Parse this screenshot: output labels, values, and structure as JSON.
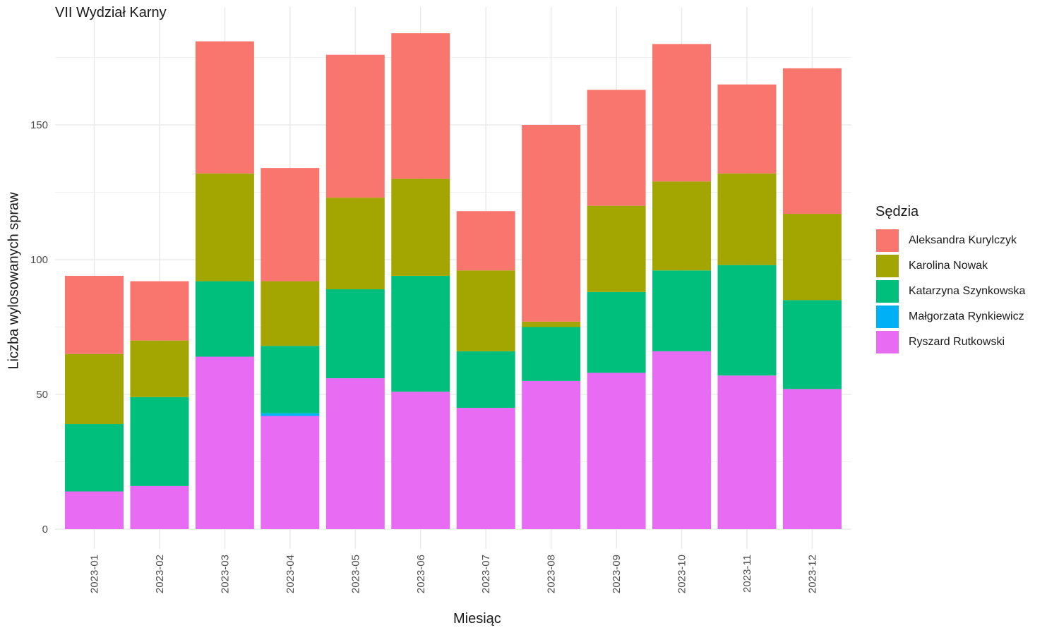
{
  "chart_data": {
    "type": "bar",
    "stacked": true,
    "title": "VII Wydział Karny",
    "xlabel": "Miesiąc",
    "ylabel": "Liczba wylosowanych spraw",
    "ylim": [
      0,
      193
    ],
    "y_ticks": [
      0,
      50,
      100,
      150
    ],
    "grid": true,
    "legend_title": "Sędzia",
    "legend_position": "right",
    "categories": [
      "2023-01",
      "2023-02",
      "2023-03",
      "2023-04",
      "2023-05",
      "2023-06",
      "2023-07",
      "2023-08",
      "2023-09",
      "2023-10",
      "2023-11",
      "2023-12"
    ],
    "series": [
      {
        "name": "Ryszard Rutkowski",
        "color": "#E76BF3",
        "values": [
          14,
          16,
          64,
          42,
          56,
          51,
          45,
          55,
          58,
          66,
          57,
          52
        ]
      },
      {
        "name": "Małgorzata Rynkiewicz",
        "color": "#00B0F6",
        "values": [
          0,
          0,
          0,
          1,
          0,
          0,
          0,
          0,
          0,
          0,
          0,
          0
        ]
      },
      {
        "name": "Katarzyna Szynkowska",
        "color": "#00BF7D",
        "values": [
          25,
          33,
          28,
          25,
          33,
          43,
          21,
          20,
          30,
          30,
          41,
          33
        ]
      },
      {
        "name": "Karolina Nowak",
        "color": "#A3A500",
        "values": [
          26,
          21,
          40,
          24,
          34,
          36,
          30,
          2,
          32,
          33,
          34,
          32
        ]
      },
      {
        "name": "Aleksandra Kurylczyk",
        "color": "#F8766D",
        "values": [
          29,
          22,
          49,
          42,
          53,
          54,
          22,
          73,
          43,
          51,
          33,
          54
        ]
      }
    ],
    "legend_order": [
      "Aleksandra Kurylczyk",
      "Karolina Nowak",
      "Katarzyna Szynkowska",
      "Małgorzata Rynkiewicz",
      "Ryszard Rutkowski"
    ]
  }
}
